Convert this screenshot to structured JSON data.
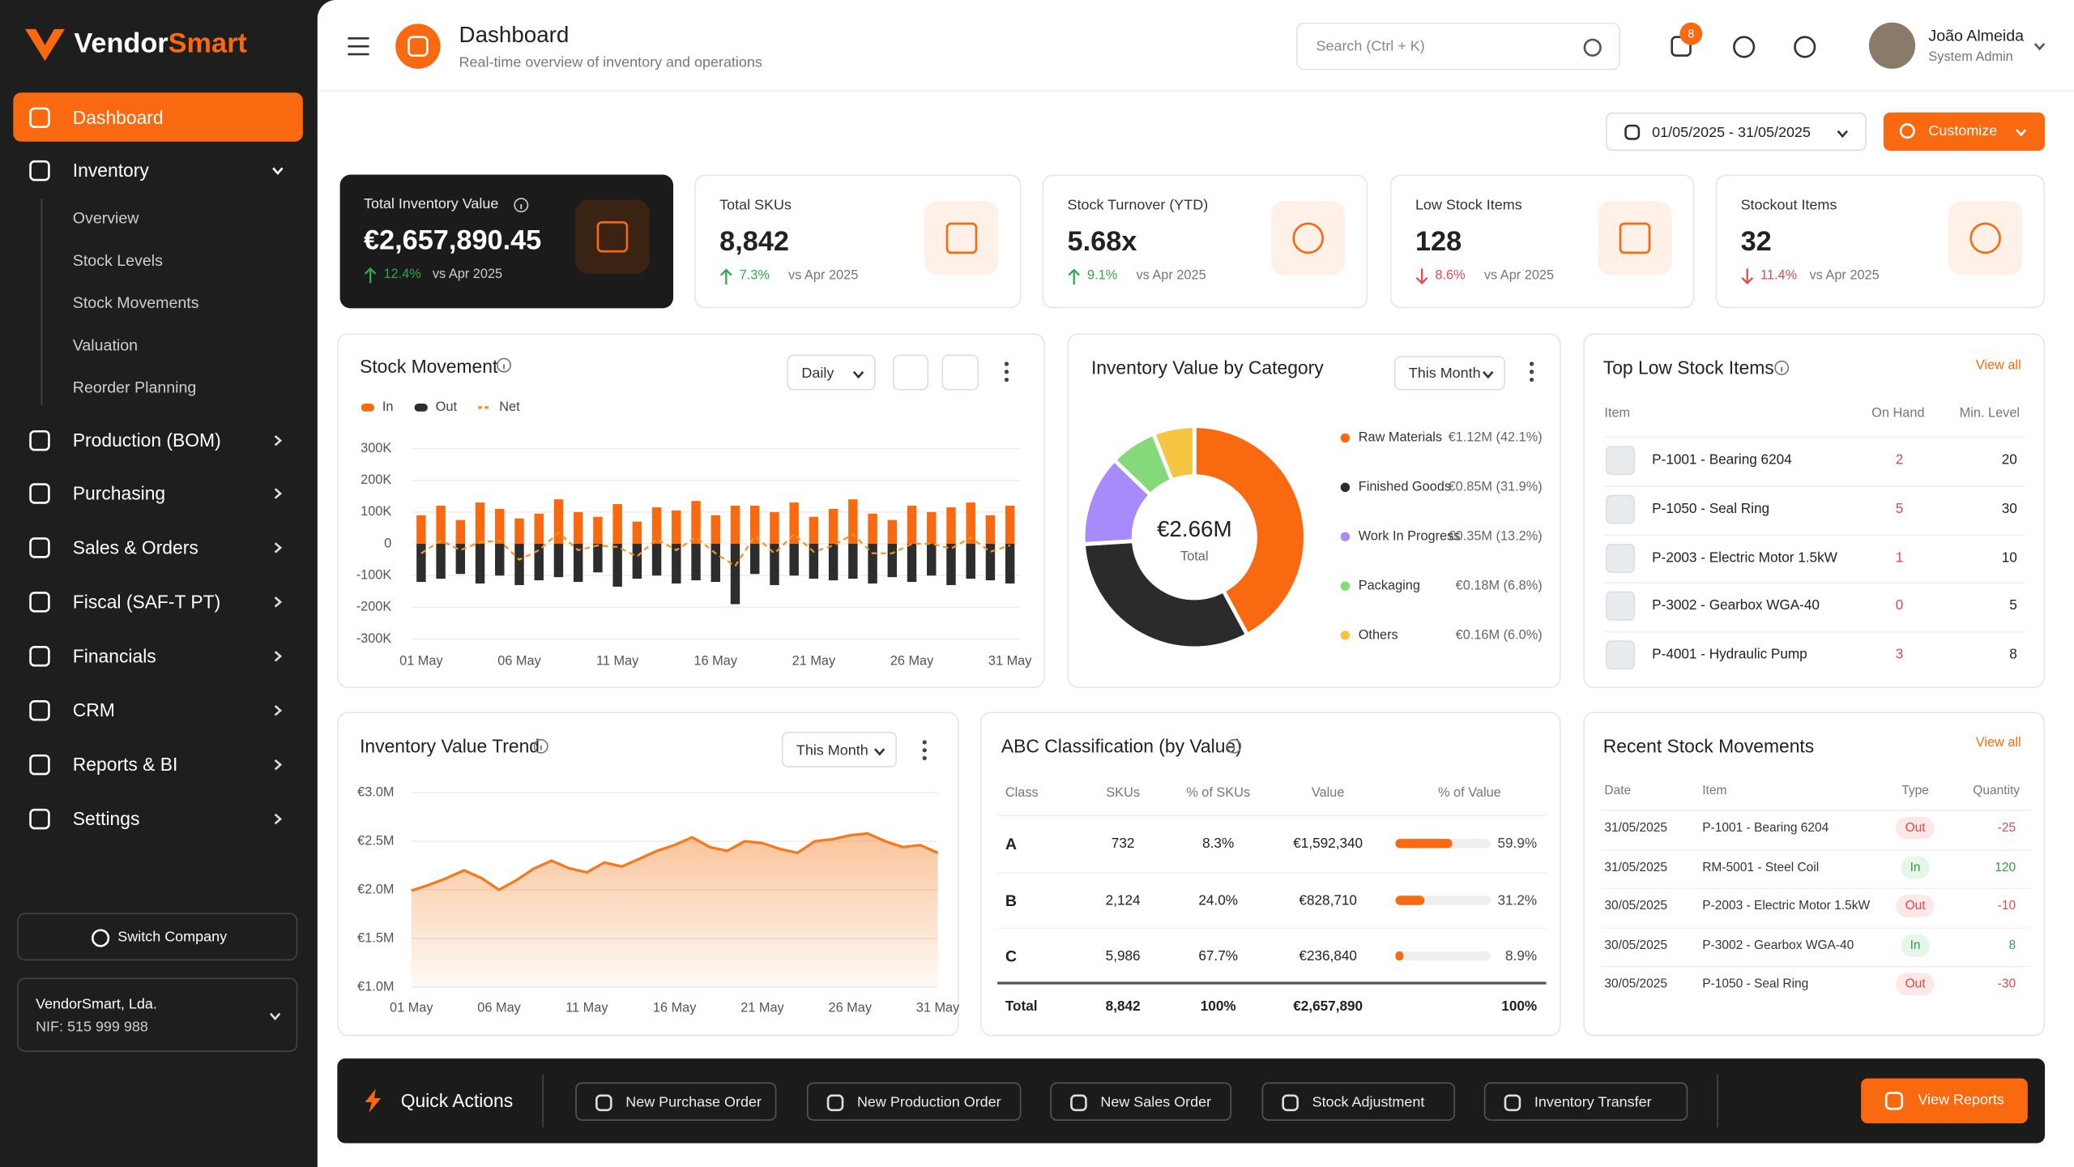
{
  "sidebar": {
    "logo_part1": "Vendor",
    "logo_part2": "Smart",
    "nav": [
      {
        "label": "Dashboard",
        "active": true
      },
      {
        "label": "Inventory",
        "expanded": true,
        "children": [
          "Overview",
          "Stock Levels",
          "Stock Movements",
          "Valuation",
          "Reorder Planning"
        ]
      },
      {
        "label": "Production (BOM)"
      },
      {
        "label": "Purchasing"
      },
      {
        "label": "Sales & Orders"
      },
      {
        "label": "Fiscal (SAF-T PT)"
      },
      {
        "label": "Financials"
      },
      {
        "label": "CRM"
      },
      {
        "label": "Reports & BI"
      },
      {
        "label": "Settings"
      }
    ],
    "switch_company": "Switch Company",
    "company_name": "VendorSmart, Lda.",
    "company_nif": "NIF: 515 999 988"
  },
  "header": {
    "title": "Dashboard",
    "subtitle": "Real-time overview of inventory and operations",
    "search_placeholder": "Search (Ctrl + K)",
    "notifications": 8,
    "user_name": "João Almeida",
    "user_role": "System Admin",
    "date_range": "01/05/2025 - 31/05/2025",
    "customize": "Customize"
  },
  "kpis": [
    {
      "label": "Total Inventory Value",
      "value": "€2,657,890.45",
      "change": "12.4%",
      "trend": "up",
      "compare": "vs Apr 2025",
      "dark": true
    },
    {
      "label": "Total SKUs",
      "value": "8,842",
      "change": "7.3%",
      "trend": "up",
      "compare": "vs Apr 2025"
    },
    {
      "label": "Stock Turnover (YTD)",
      "value": "5.68x",
      "change": "9.1%",
      "trend": "up",
      "compare": "vs Apr 2025"
    },
    {
      "label": "Low Stock Items",
      "value": "128",
      "change": "8.6%",
      "trend": "down",
      "compare": "vs Apr 2025"
    },
    {
      "label": "Stockout Items",
      "value": "32",
      "change": "11.4%",
      "trend": "down",
      "compare": "vs Apr 2025"
    }
  ],
  "chart_data": [
    {
      "type": "bar",
      "title": "Stock Movement",
      "period": "Daily",
      "categories": [
        "01 May",
        null,
        null,
        null,
        null,
        "06 May",
        null,
        null,
        null,
        null,
        "11 May",
        null,
        null,
        null,
        null,
        "16 May",
        null,
        null,
        null,
        null,
        "21 May",
        null,
        null,
        null,
        null,
        "26 May",
        null,
        null,
        null,
        null,
        "31 May"
      ],
      "series": [
        {
          "name": "In",
          "color": "#f96a10",
          "type": "bar",
          "values": [
            90000,
            120000,
            75000,
            130000,
            110000,
            80000,
            95000,
            140000,
            100000,
            85000,
            125000,
            70000,
            115000,
            105000,
            135000,
            90000,
            120000,
            120000,
            100000,
            130000,
            85000,
            110000,
            140000,
            95000,
            75000,
            120000,
            100000,
            115000,
            130000,
            90000,
            120000
          ]
        },
        {
          "name": "Out",
          "color": "#2d2d2d",
          "type": "bar",
          "values": [
            -120000,
            -110000,
            -95000,
            -125000,
            -100000,
            -130000,
            -115000,
            -105000,
            -120000,
            -90000,
            -135000,
            -110000,
            -100000,
            -125000,
            -115000,
            -120000,
            -190000,
            -95000,
            -130000,
            -100000,
            -110000,
            -115000,
            -110000,
            -125000,
            -105000,
            -120000,
            -100000,
            -130000,
            -110000,
            -115000,
            -125000
          ]
        },
        {
          "name": "Net",
          "color": "#f7931e",
          "type": "line",
          "dashed": true,
          "values": [
            -30000,
            10000,
            -20000,
            5000,
            10000,
            -50000,
            -20000,
            35000,
            -20000,
            -5000,
            -10000,
            -40000,
            15000,
            -20000,
            20000,
            -30000,
            -70000,
            25000,
            -30000,
            30000,
            -25000,
            -5000,
            30000,
            -30000,
            -30000,
            0,
            0,
            -15000,
            20000,
            -25000,
            -5000
          ]
        }
      ],
      "ylim": [
        -300000,
        300000
      ],
      "yticks": [
        {
          "value": 300000,
          "label": "300K"
        },
        {
          "value": 200000,
          "label": "200K"
        },
        {
          "value": 100000,
          "label": "100K"
        },
        0,
        {
          "value": -100000,
          "label": "-100K"
        },
        {
          "value": -200000,
          "label": "-200K"
        },
        {
          "value": -300000,
          "label": "-300K"
        }
      ],
      "grid": true
    },
    {
      "type": "pie",
      "donut": true,
      "title": "Inventory Value by Category",
      "period": "This Month",
      "categories": [
        "Raw Materials",
        "Finished Goods",
        "Work In Progress",
        "Packaging",
        "Others"
      ],
      "values": [
        42.1,
        31.9,
        13.2,
        6.8,
        6.0
      ],
      "value_labels": [
        "€1.12M (42.1%)",
        "€0.85M (31.9%)",
        "€0.35M (13.2%)",
        "€0.18M (6.8%)",
        "€0.16M (6.0%)"
      ],
      "colors": [
        "#f96a10",
        "#2b2b2b",
        "#a78bfa",
        "#86d97a",
        "#f5c542"
      ],
      "center_value": "€2.66M",
      "center_label": "Total"
    },
    {
      "type": "line",
      "area": true,
      "title": "Inventory Value Trend",
      "period": "This Month",
      "color": "#f47a20",
      "categories": [
        "01 May",
        null,
        null,
        null,
        null,
        "06 May",
        null,
        null,
        null,
        null,
        "11 May",
        null,
        null,
        null,
        null,
        "16 May",
        null,
        null,
        null,
        null,
        "21 May",
        null,
        null,
        null,
        null,
        "26 May",
        null,
        null,
        null,
        null,
        "31 May"
      ],
      "values": [
        1990000,
        2050000,
        2120000,
        2200000,
        2120000,
        2000000,
        2100000,
        2220000,
        2300000,
        2220000,
        2180000,
        2280000,
        2240000,
        2320000,
        2400000,
        2460000,
        2540000,
        2440000,
        2400000,
        2500000,
        2480000,
        2420000,
        2380000,
        2500000,
        2520000,
        2560000,
        2580000,
        2500000,
        2440000,
        2460000,
        2380000
      ],
      "ylim": [
        1000000,
        3000000
      ],
      "yticks": [
        {
          "value": 3000000,
          "label": "€3.0M"
        },
        {
          "value": 2500000,
          "label": "€2.5M"
        },
        {
          "value": 2000000,
          "label": "€2.0M"
        },
        {
          "value": 1500000,
          "label": "€1.5M"
        },
        {
          "value": 1000000,
          "label": "€1.0M"
        }
      ],
      "grid": true
    }
  ],
  "low_stock": {
    "title": "Top Low Stock Items",
    "view_all": "View all",
    "columns": [
      "Item",
      "On Hand",
      "Min. Level"
    ],
    "rows": [
      [
        "P-1001 - Bearing 6204",
        2,
        20
      ],
      [
        "P-1050 - Seal Ring",
        5,
        30
      ],
      [
        "P-2003 - Electric Motor 1.5kW",
        1,
        10
      ],
      [
        "P-3002 - Gearbox WGA-40",
        0,
        5
      ],
      [
        "P-4001 - Hydraulic Pump",
        3,
        8
      ]
    ]
  },
  "abc": {
    "title": "ABC Classification (by Value)",
    "columns": [
      "Class",
      "SKUs",
      "% of SKUs",
      "Value",
      "% of Value"
    ],
    "rows": [
      {
        "class": "A",
        "skus": "732",
        "pct_skus": "8.3%",
        "value": "€1,592,340",
        "pct_value": {
          "value": 59.9,
          "label": "59.9%"
        }
      },
      {
        "class": "B",
        "skus": "2,124",
        "pct_skus": "24.0%",
        "value": "€828,710",
        "pct_value": {
          "value": 31.2,
          "label": "31.2%"
        }
      },
      {
        "class": "C",
        "skus": "5,986",
        "pct_skus": "67.7%",
        "value": "€236,840",
        "pct_value": {
          "value": 8.9,
          "label": "8.9%"
        }
      }
    ],
    "total": {
      "class": "Total",
      "skus": "8,842",
      "pct_skus": "100%",
      "value": "€2,657,890",
      "pct_value": "100%"
    }
  },
  "recent": {
    "title": "Recent Stock Movements",
    "view_all": "View all",
    "columns": [
      "Date",
      "Item",
      "Type",
      "Quantity"
    ],
    "rows": [
      [
        "31/05/2025",
        "P-1001 - Bearing 6204",
        "Out",
        "-25"
      ],
      [
        "31/05/2025",
        "RM-5001 - Steel Coil",
        "In",
        "120"
      ],
      [
        "30/05/2025",
        "P-2003 - Electric Motor 1.5kW",
        "Out",
        "-10"
      ],
      [
        "30/05/2025",
        "P-3002 - Gearbox WGA-40",
        "In",
        "8"
      ],
      [
        "30/05/2025",
        "P-1050 - Seal Ring",
        "Out",
        "-30"
      ]
    ]
  },
  "quick_actions": {
    "title": "Quick Actions",
    "actions": [
      "New Purchase Order",
      "New Production Order",
      "New Sales Order",
      "Stock Adjustment",
      "Inventory Transfer"
    ],
    "view_reports": "View Reports"
  }
}
